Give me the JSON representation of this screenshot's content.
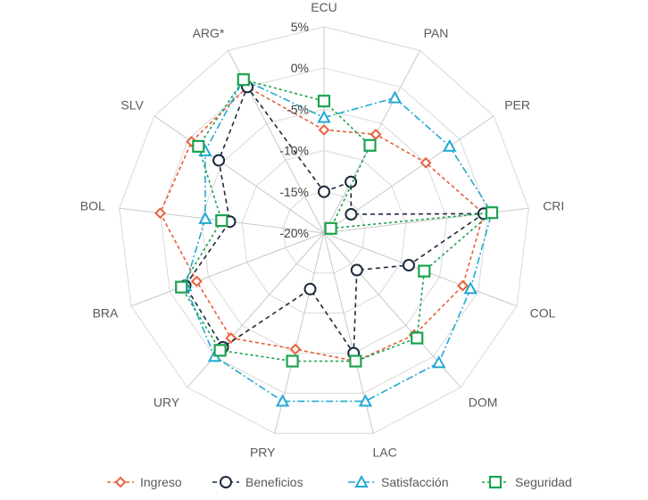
{
  "chart_data": {
    "type": "radar",
    "categories": [
      "ECU",
      "PAN",
      "PER",
      "CRI",
      "COL",
      "DOM",
      "LAC",
      "PRY",
      "URY",
      "BRA",
      "BOL",
      "SLV",
      "ARG*"
    ],
    "rmin": -20,
    "rmax": 5,
    "ticks": [
      5,
      0,
      -5,
      -10,
      -15,
      -20
    ],
    "tick_labels": [
      "5%",
      "0%",
      "-5%",
      "-10%",
      "-15%",
      "-20%"
    ],
    "grid": true,
    "legend_position": "bottom",
    "series": [
      {
        "name": "Ingreso",
        "color": "#E8603C",
        "dash": "4,3",
        "marker": "diamond",
        "values": [
          -7.5,
          -6.5,
          -5,
          -0.5,
          -2,
          -3.5,
          -4,
          -5.5,
          -3,
          -3.5,
          0,
          -0.5,
          0
        ]
      },
      {
        "name": "Beneficios",
        "color": "#1B2A3C",
        "dash": "5,4",
        "marker": "circle",
        "values": [
          -15,
          -13,
          -16,
          -0.5,
          -9,
          -14,
          -5,
          -13,
          -1.5,
          -2,
          -8.5,
          -4.5,
          0
        ]
      },
      {
        "name": "Satisfacción",
        "color": "#22A9D2",
        "dash": "8,3,2,3",
        "marker": "triangle",
        "values": [
          -6,
          -1.5,
          -1.5,
          0.5,
          -1,
          1,
          1,
          1,
          0,
          -2,
          -5.5,
          -2.5,
          1
        ]
      },
      {
        "name": "Seguridad",
        "color": "#1BA34F",
        "dash": "3,3",
        "marker": "square",
        "values": [
          -4,
          -8,
          -19,
          0.5,
          -7,
          -3,
          -4,
          -4,
          -1,
          -1.5,
          -7.5,
          -1.5,
          1
        ]
      }
    ]
  }
}
